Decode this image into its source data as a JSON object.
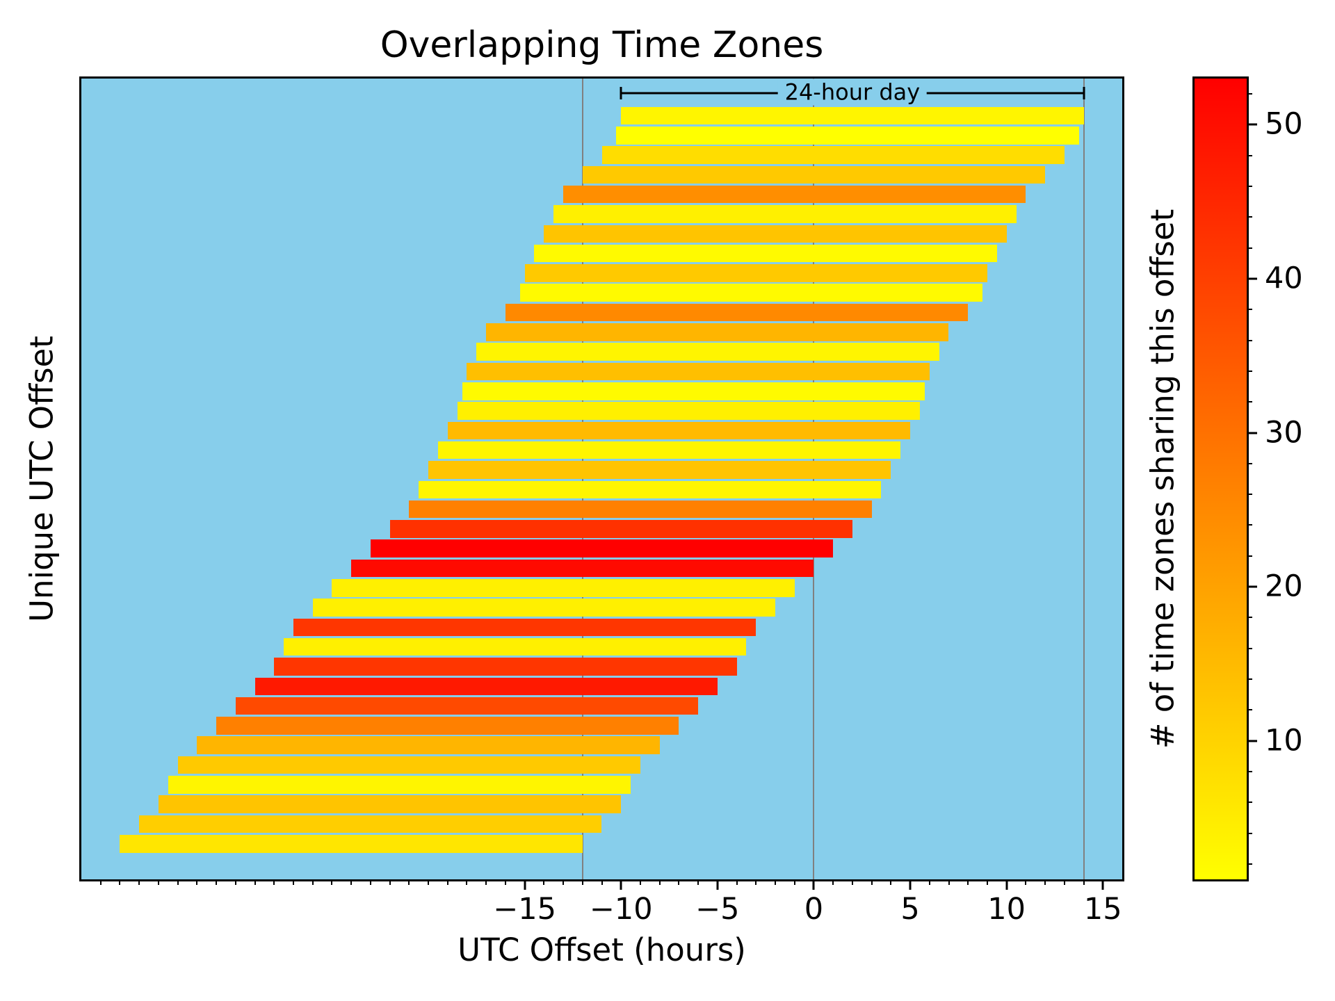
{
  "title": "Overlapping Time Zones",
  "chart_data": {
    "type": "bar",
    "orientation": "horizontal",
    "title": "Overlapping Time Zones",
    "xlabel": "UTC Offset (hours)",
    "ylabel": "Unique UTC Offset",
    "xlim": [
      -38,
      16
    ],
    "x_major_ticks": [
      -15,
      -10,
      -5,
      0,
      5,
      10,
      15
    ],
    "x_tick_labels": [
      "−15",
      "−10",
      "−5",
      "0",
      "5",
      "10",
      "15"
    ],
    "x_minor_tick_step": 1,
    "plot_background_color": "#87CEEB",
    "reference_lines_x": [
      -12,
      0,
      14
    ],
    "bar_span_hours": 24,
    "annotation": {
      "label": "24-hour day",
      "x_start": -10,
      "x_end": 14
    },
    "colorbar": {
      "label": "# of time zones sharing this offset",
      "vmin": 1,
      "vmax": 53,
      "major_ticks": [
        10,
        20,
        30,
        40,
        50
      ],
      "minor_tick_step": 2,
      "colormap": "yellow(low) to red(high), autumn_r",
      "color_low": "#FFFF00",
      "color_high": "#FF0000"
    },
    "bars_note": "each bar spans [offset-24h, offset]; rows ordered top to bottom; color encodes count",
    "bars": [
      {
        "offset": 14,
        "count": 3
      },
      {
        "offset": 13.75,
        "count": 1
      },
      {
        "offset": 13,
        "count": 8
      },
      {
        "offset": 12,
        "count": 12
      },
      {
        "offset": 11,
        "count": 24
      },
      {
        "offset": 10.5,
        "count": 4
      },
      {
        "offset": 10,
        "count": 13
      },
      {
        "offset": 9.5,
        "count": 2
      },
      {
        "offset": 9,
        "count": 12
      },
      {
        "offset": 8.75,
        "count": 2
      },
      {
        "offset": 8,
        "count": 25
      },
      {
        "offset": 7,
        "count": 16
      },
      {
        "offset": 6.5,
        "count": 3
      },
      {
        "offset": 6,
        "count": 14
      },
      {
        "offset": 5.75,
        "count": 2
      },
      {
        "offset": 5.5,
        "count": 4
      },
      {
        "offset": 5,
        "count": 15
      },
      {
        "offset": 4.5,
        "count": 3
      },
      {
        "offset": 4,
        "count": 13
      },
      {
        "offset": 3.5,
        "count": 3
      },
      {
        "offset": 3,
        "count": 27
      },
      {
        "offset": 2,
        "count": 43
      },
      {
        "offset": 1,
        "count": 53
      },
      {
        "offset": 0,
        "count": 51
      },
      {
        "offset": -1,
        "count": 4
      },
      {
        "offset": -2,
        "count": 4
      },
      {
        "offset": -3,
        "count": 42
      },
      {
        "offset": -3.5,
        "count": 4
      },
      {
        "offset": -4,
        "count": 42
      },
      {
        "offset": -5,
        "count": 48
      },
      {
        "offset": -6,
        "count": 38
      },
      {
        "offset": -7,
        "count": 27
      },
      {
        "offset": -8,
        "count": 16
      },
      {
        "offset": -9,
        "count": 12
      },
      {
        "offset": -9.5,
        "count": 3
      },
      {
        "offset": -10,
        "count": 13
      },
      {
        "offset": -11,
        "count": 11
      },
      {
        "offset": -12,
        "count": 6
      }
    ]
  }
}
